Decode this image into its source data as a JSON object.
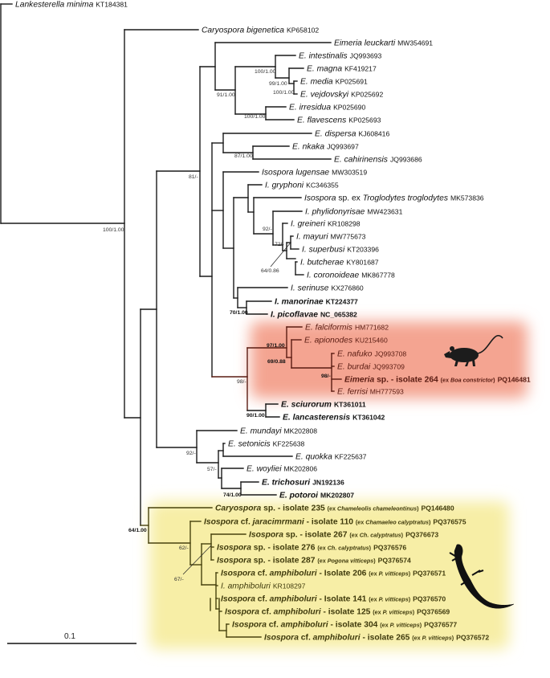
{
  "colors": {
    "red_clade_highlight": "#f4a491",
    "yellow_clade_highlight": "#f7eea6",
    "red_clade_text": "#5a1c12",
    "yellow_clade_text": "#3f3a0c",
    "branch": "#1a1a1a"
  },
  "icons": {
    "red_clade": "rodent-silhouette-icon",
    "yellow_clade": "lizard-silhouette-icon"
  },
  "scale_bar": {
    "label": "0.1"
  },
  "leaves": [
    {
      "parts": [
        [
          "Lankesterella minima",
          "i"
        ]
      ],
      "acc": "KT184381"
    },
    {
      "parts": [
        [
          "Caryospora bigenetica",
          "i"
        ]
      ],
      "acc": "KP658102"
    },
    {
      "parts": [
        [
          "Eimeria leuckarti",
          "i"
        ]
      ],
      "acc": "MW354691"
    },
    {
      "parts": [
        [
          "E. intestinalis",
          "i"
        ]
      ],
      "acc": "JQ993693"
    },
    {
      "parts": [
        [
          "E. magna",
          "i"
        ]
      ],
      "acc": "KF419217"
    },
    {
      "parts": [
        [
          "E. media",
          "i"
        ]
      ],
      "acc": "KP025691"
    },
    {
      "parts": [
        [
          "E. vejdovskyi",
          "i"
        ]
      ],
      "acc": "KP025692"
    },
    {
      "parts": [
        [
          "E. irresidua",
          "i"
        ]
      ],
      "acc": "KP025690"
    },
    {
      "parts": [
        [
          "E. flavescens",
          "i"
        ]
      ],
      "acc": "KP025693"
    },
    {
      "parts": [
        [
          "E. dispersa",
          "i"
        ]
      ],
      "acc": "KJ608416"
    },
    {
      "parts": [
        [
          "E. nkaka",
          "i"
        ]
      ],
      "acc": "JQ993697"
    },
    {
      "parts": [
        [
          "E. cahirinensis",
          "i"
        ]
      ],
      "acc": "JQ993686"
    },
    {
      "parts": [
        [
          "Isospora lugensae",
          "i"
        ]
      ],
      "acc": "MW303519"
    },
    {
      "parts": [
        [
          "I. gryphoni",
          "i"
        ]
      ],
      "acc": "KC346355"
    },
    {
      "parts": [
        [
          "Isospora",
          "i"
        ],
        [
          " sp. ex ",
          ""
        ],
        [
          "Troglodytes troglodytes",
          "i"
        ]
      ],
      "acc": "MK573836"
    },
    {
      "parts": [
        [
          "I. phylidonyrisae",
          "i"
        ]
      ],
      "acc": "MW423631"
    },
    {
      "parts": [
        [
          "I. greineri",
          "i"
        ]
      ],
      "acc": "KR108298"
    },
    {
      "parts": [
        [
          "I. mayuri",
          "i"
        ]
      ],
      "acc": "MW775673"
    },
    {
      "parts": [
        [
          "I. superbusi",
          "i"
        ]
      ],
      "acc": "KT203396"
    },
    {
      "parts": [
        [
          "I. butcherae",
          "i"
        ]
      ],
      "acc": "KY801687"
    },
    {
      "parts": [
        [
          "I. coronoideae",
          "i"
        ]
      ],
      "acc": "MK867778"
    },
    {
      "parts": [
        [
          "I. serinuse",
          "i"
        ]
      ],
      "acc": "KX276860"
    },
    {
      "parts": [
        [
          "I. manorinae",
          "ib"
        ]
      ],
      "acc": "KT224377",
      "bold": true
    },
    {
      "parts": [
        [
          "I. picoflavae",
          "ib"
        ]
      ],
      "acc": "NC_065382",
      "bold": true
    },
    {
      "parts": [
        [
          "E. falciformis",
          "i"
        ]
      ],
      "acc": "HM771682"
    },
    {
      "parts": [
        [
          "E. apionodes",
          "i"
        ]
      ],
      "acc": "KU215460"
    },
    {
      "parts": [
        [
          "E. nafuko",
          "i"
        ]
      ],
      "acc": "JQ993708"
    },
    {
      "parts": [
        [
          "E. burdai",
          "i"
        ]
      ],
      "acc": "JQ993709"
    },
    {
      "parts": [
        [
          "Eimeria",
          "ib"
        ],
        [
          " sp. - isolate 264 ",
          "b"
        ],
        [
          "(ex ",
          "sb"
        ],
        [
          "Boa constrictor",
          "sbi"
        ],
        [
          ")",
          "sb"
        ]
      ],
      "acc": "PQ146481",
      "bold": true
    },
    {
      "parts": [
        [
          "E. ferrisi",
          "i"
        ]
      ],
      "acc": "MH777593"
    },
    {
      "parts": [
        [
          "E. sciurorum",
          "ib"
        ]
      ],
      "acc": "KT361011",
      "bold": true
    },
    {
      "parts": [
        [
          "E. lancasterensis",
          "ib"
        ]
      ],
      "acc": "KT361042",
      "bold": true
    },
    {
      "parts": [
        [
          "E. mundayi",
          "i"
        ]
      ],
      "acc": "MK202808"
    },
    {
      "parts": [
        [
          "E. setonicis",
          "i"
        ]
      ],
      "acc": "KF225638"
    },
    {
      "parts": [
        [
          "E. quokka",
          "i"
        ]
      ],
      "acc": "KF225637"
    },
    {
      "parts": [
        [
          "E. woyliei",
          "i"
        ]
      ],
      "acc": "MK202806"
    },
    {
      "parts": [
        [
          "E. trichosuri",
          "ib"
        ]
      ],
      "acc": "JN192136",
      "bold": true
    },
    {
      "parts": [
        [
          "E. potoroi",
          "ib"
        ]
      ],
      "acc": "MK202807",
      "bold": true
    },
    {
      "parts": [
        [
          "Caryospora",
          "ib"
        ],
        [
          " sp. - isolate 235 ",
          "b"
        ],
        [
          "(ex ",
          "sb"
        ],
        [
          "Chameleolis chameleontinus",
          "sbi"
        ],
        [
          ")",
          "sb"
        ]
      ],
      "acc": "PQ146480",
      "bold": true
    },
    {
      "parts": [
        [
          "Isospora",
          "ib"
        ],
        [
          " cf. ",
          "b"
        ],
        [
          "jaracimrmani",
          "ib"
        ],
        [
          " - isolate 110 ",
          "b"
        ],
        [
          "(ex ",
          "sb"
        ],
        [
          "Chamaeleo calyptratus",
          "sbi"
        ],
        [
          ")",
          "sb"
        ]
      ],
      "acc": "PQ376575",
      "bold": true
    },
    {
      "parts": [
        [
          "Isospora",
          "ib"
        ],
        [
          " sp. - isolate 267 ",
          "b"
        ],
        [
          "(ex ",
          "sb"
        ],
        [
          "Ch. calyptratus",
          "sbi"
        ],
        [
          ")",
          "sb"
        ]
      ],
      "acc": "PQ376673",
      "bold": true
    },
    {
      "parts": [
        [
          "Isospora",
          "ib"
        ],
        [
          " sp. - isolate 276 ",
          "b"
        ],
        [
          "(ex ",
          "sb"
        ],
        [
          "Ch. calyptratus",
          "sbi"
        ],
        [
          ")",
          "sb"
        ]
      ],
      "acc": "PQ376576",
      "bold": true
    },
    {
      "parts": [
        [
          "Isospora",
          "ib"
        ],
        [
          " sp. - isolate 287 ",
          "b"
        ],
        [
          "(ex ",
          "sb"
        ],
        [
          "Pogona vitticeps",
          "sbi"
        ],
        [
          ")",
          "sb"
        ]
      ],
      "acc": "PQ376574",
      "bold": true
    },
    {
      "parts": [
        [
          "Isospora",
          "ib"
        ],
        [
          " cf. ",
          "b"
        ],
        [
          "amphiboluri",
          "ib"
        ],
        [
          " - Isolate 206 ",
          "b"
        ],
        [
          "(ex ",
          "sb"
        ],
        [
          "P. vitticeps",
          "sbi"
        ],
        [
          ")",
          "sb"
        ]
      ],
      "acc": "PQ376571",
      "bold": true
    },
    {
      "parts": [
        [
          "I. amphiboluri",
          "i"
        ]
      ],
      "acc": "KR108297"
    },
    {
      "parts": [
        [
          "Isospora",
          "ib"
        ],
        [
          " cf. ",
          "b"
        ],
        [
          "amphiboluri",
          "ib"
        ],
        [
          " - Isolate 141 ",
          "b"
        ],
        [
          "(ex ",
          "sb"
        ],
        [
          "P. vitticeps",
          "sbi"
        ],
        [
          ")",
          "sb"
        ]
      ],
      "acc": "PQ376570",
      "bold": true
    },
    {
      "parts": [
        [
          "Isospora",
          "ib"
        ],
        [
          " cf. ",
          "b"
        ],
        [
          "amphiboluri",
          "ib"
        ],
        [
          " - isolate 125 ",
          "b"
        ],
        [
          "(ex ",
          "sb"
        ],
        [
          "P. vitticeps",
          "sbi"
        ],
        [
          ")",
          "sb"
        ]
      ],
      "acc": "PQ376569",
      "bold": true
    },
    {
      "parts": [
        [
          "Isospora",
          "ib"
        ],
        [
          " cf. ",
          "b"
        ],
        [
          "amphiboluri",
          "ib"
        ],
        [
          " - isolate 304 ",
          "b"
        ],
        [
          "(ex ",
          "sb"
        ],
        [
          "P. vitticeps",
          "sbi"
        ],
        [
          ")",
          "sb"
        ]
      ],
      "acc": "PQ376577",
      "bold": true
    },
    {
      "parts": [
        [
          "Isospora",
          "ib"
        ],
        [
          " cf. ",
          "b"
        ],
        [
          "amphiboluri",
          "ib"
        ],
        [
          " - isolate 265 ",
          "b"
        ],
        [
          "(ex ",
          "sb"
        ],
        [
          "P. vitticeps",
          "sbi"
        ],
        [
          ")",
          "sb"
        ]
      ],
      "acc": "PQ376572",
      "bold": true
    }
  ],
  "supports": [
    "100/1.00",
    "81/-",
    "91/1.00",
    "100/1.00",
    "99/1.00",
    "100/1.00",
    "100/1.00",
    "87/1.00",
    "92/-",
    "72/-",
    "64/0.86",
    "70/1.00",
    "97/1.00",
    "69/0.88",
    "98/-",
    "98/-",
    "90/1.00",
    "92/-",
    "57/-",
    "74/1.00",
    "64/1.00",
    "62/-",
    "67/-"
  ]
}
